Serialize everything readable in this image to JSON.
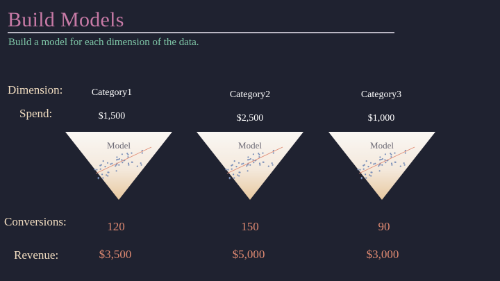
{
  "title": "Build Models",
  "subtitle": "Build a model for each dimension of the data.",
  "labels": {
    "dimension": "Dimension:",
    "spend": "Spend:",
    "conversions": "Conversions:",
    "revenue": "Revenue:"
  },
  "columns": [
    {
      "category": "Category1",
      "spend": "$1,500",
      "model": "Model",
      "conversions": "120",
      "revenue": "$3,500"
    },
    {
      "category": "Category2",
      "spend": "$2,500",
      "model": "Model",
      "conversions": "150",
      "revenue": "$5,000"
    },
    {
      "category": "Category3",
      "spend": "$1,000",
      "model": "Model",
      "conversions": "90",
      "revenue": "$3,000"
    }
  ],
  "colors": {
    "background": "#1f2230",
    "title": "#c77aa6",
    "subtitle": "#7fc7a8",
    "row_label": "#f0dcc0",
    "value": "#e08a72",
    "funnel_top": "#faf7f4",
    "funnel_bottom": "#e8c9a0",
    "scatter_point": "#7a8fb8",
    "trend_line": "#e08a72"
  }
}
